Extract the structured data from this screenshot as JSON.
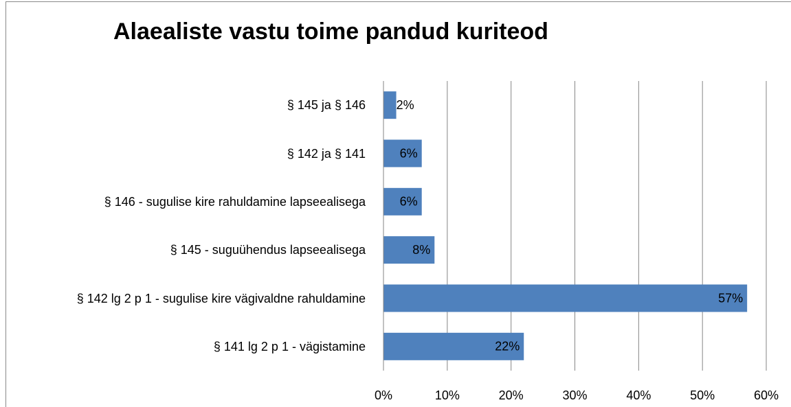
{
  "chart_data": {
    "type": "bar",
    "orientation": "horizontal",
    "title": "Alaealiste vastu toime pandud kuriteod",
    "categories": [
      "§ 145 ja § 146",
      "§ 142 ja § 141",
      "§ 146 - sugulise kire rahuldamine lapseealisega",
      "§ 145 - suguühendus lapseealisega",
      "§ 142 lg 2 p 1 - sugulise kire vägivaldne rahuldamine",
      "§ 141 lg 2 p 1 - vägistamine"
    ],
    "values": [
      2,
      6,
      6,
      8,
      57,
      22
    ],
    "value_labels": [
      "2%",
      "6%",
      "6%",
      "8%",
      "57%",
      "22%"
    ],
    "color": "#4f81bd",
    "xlim": [
      0,
      60
    ],
    "xticks": [
      {
        "value": 0,
        "label": "0%"
      },
      {
        "value": 10,
        "label": "10%"
      },
      {
        "value": 20,
        "label": "20%"
      },
      {
        "value": 30,
        "label": "30%"
      },
      {
        "value": 40,
        "label": "40%"
      },
      {
        "value": 50,
        "label": "50%"
      },
      {
        "value": 60,
        "label": "60%"
      }
    ],
    "grid": true
  }
}
